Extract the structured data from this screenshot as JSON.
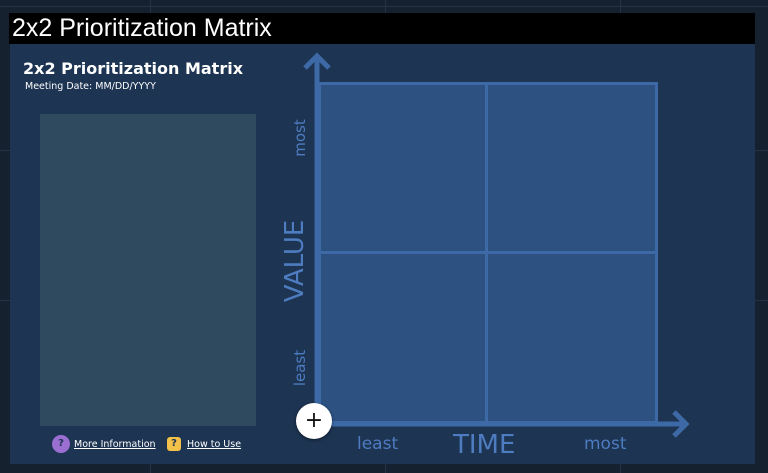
{
  "window": {
    "title": "2x2 Prioritization Matrix"
  },
  "board": {
    "title": "2x2 Prioritization Matrix",
    "meeting_date": "Meeting Date: MM/DD/YYYY"
  },
  "axes": {
    "y": {
      "label": "VALUE",
      "high": "most",
      "low": "least"
    },
    "x": {
      "label": "TIME",
      "low": "least",
      "high": "most"
    }
  },
  "actions": {
    "add_label": "+"
  },
  "footer": {
    "more_info_icon": "?",
    "more_info_label": "More Information",
    "how_to_icon": "?",
    "how_to_label": "How to Use"
  },
  "colors": {
    "board_background": "#1d3452",
    "quadrant_fill": "#2d5282",
    "axis_accent": "#3d6aa6",
    "axis_text": "#4d7cc0",
    "notes_panel": "#2f4a5e",
    "more_info_badge": "#9a6fd1",
    "how_to_badge": "#f2c14a"
  }
}
